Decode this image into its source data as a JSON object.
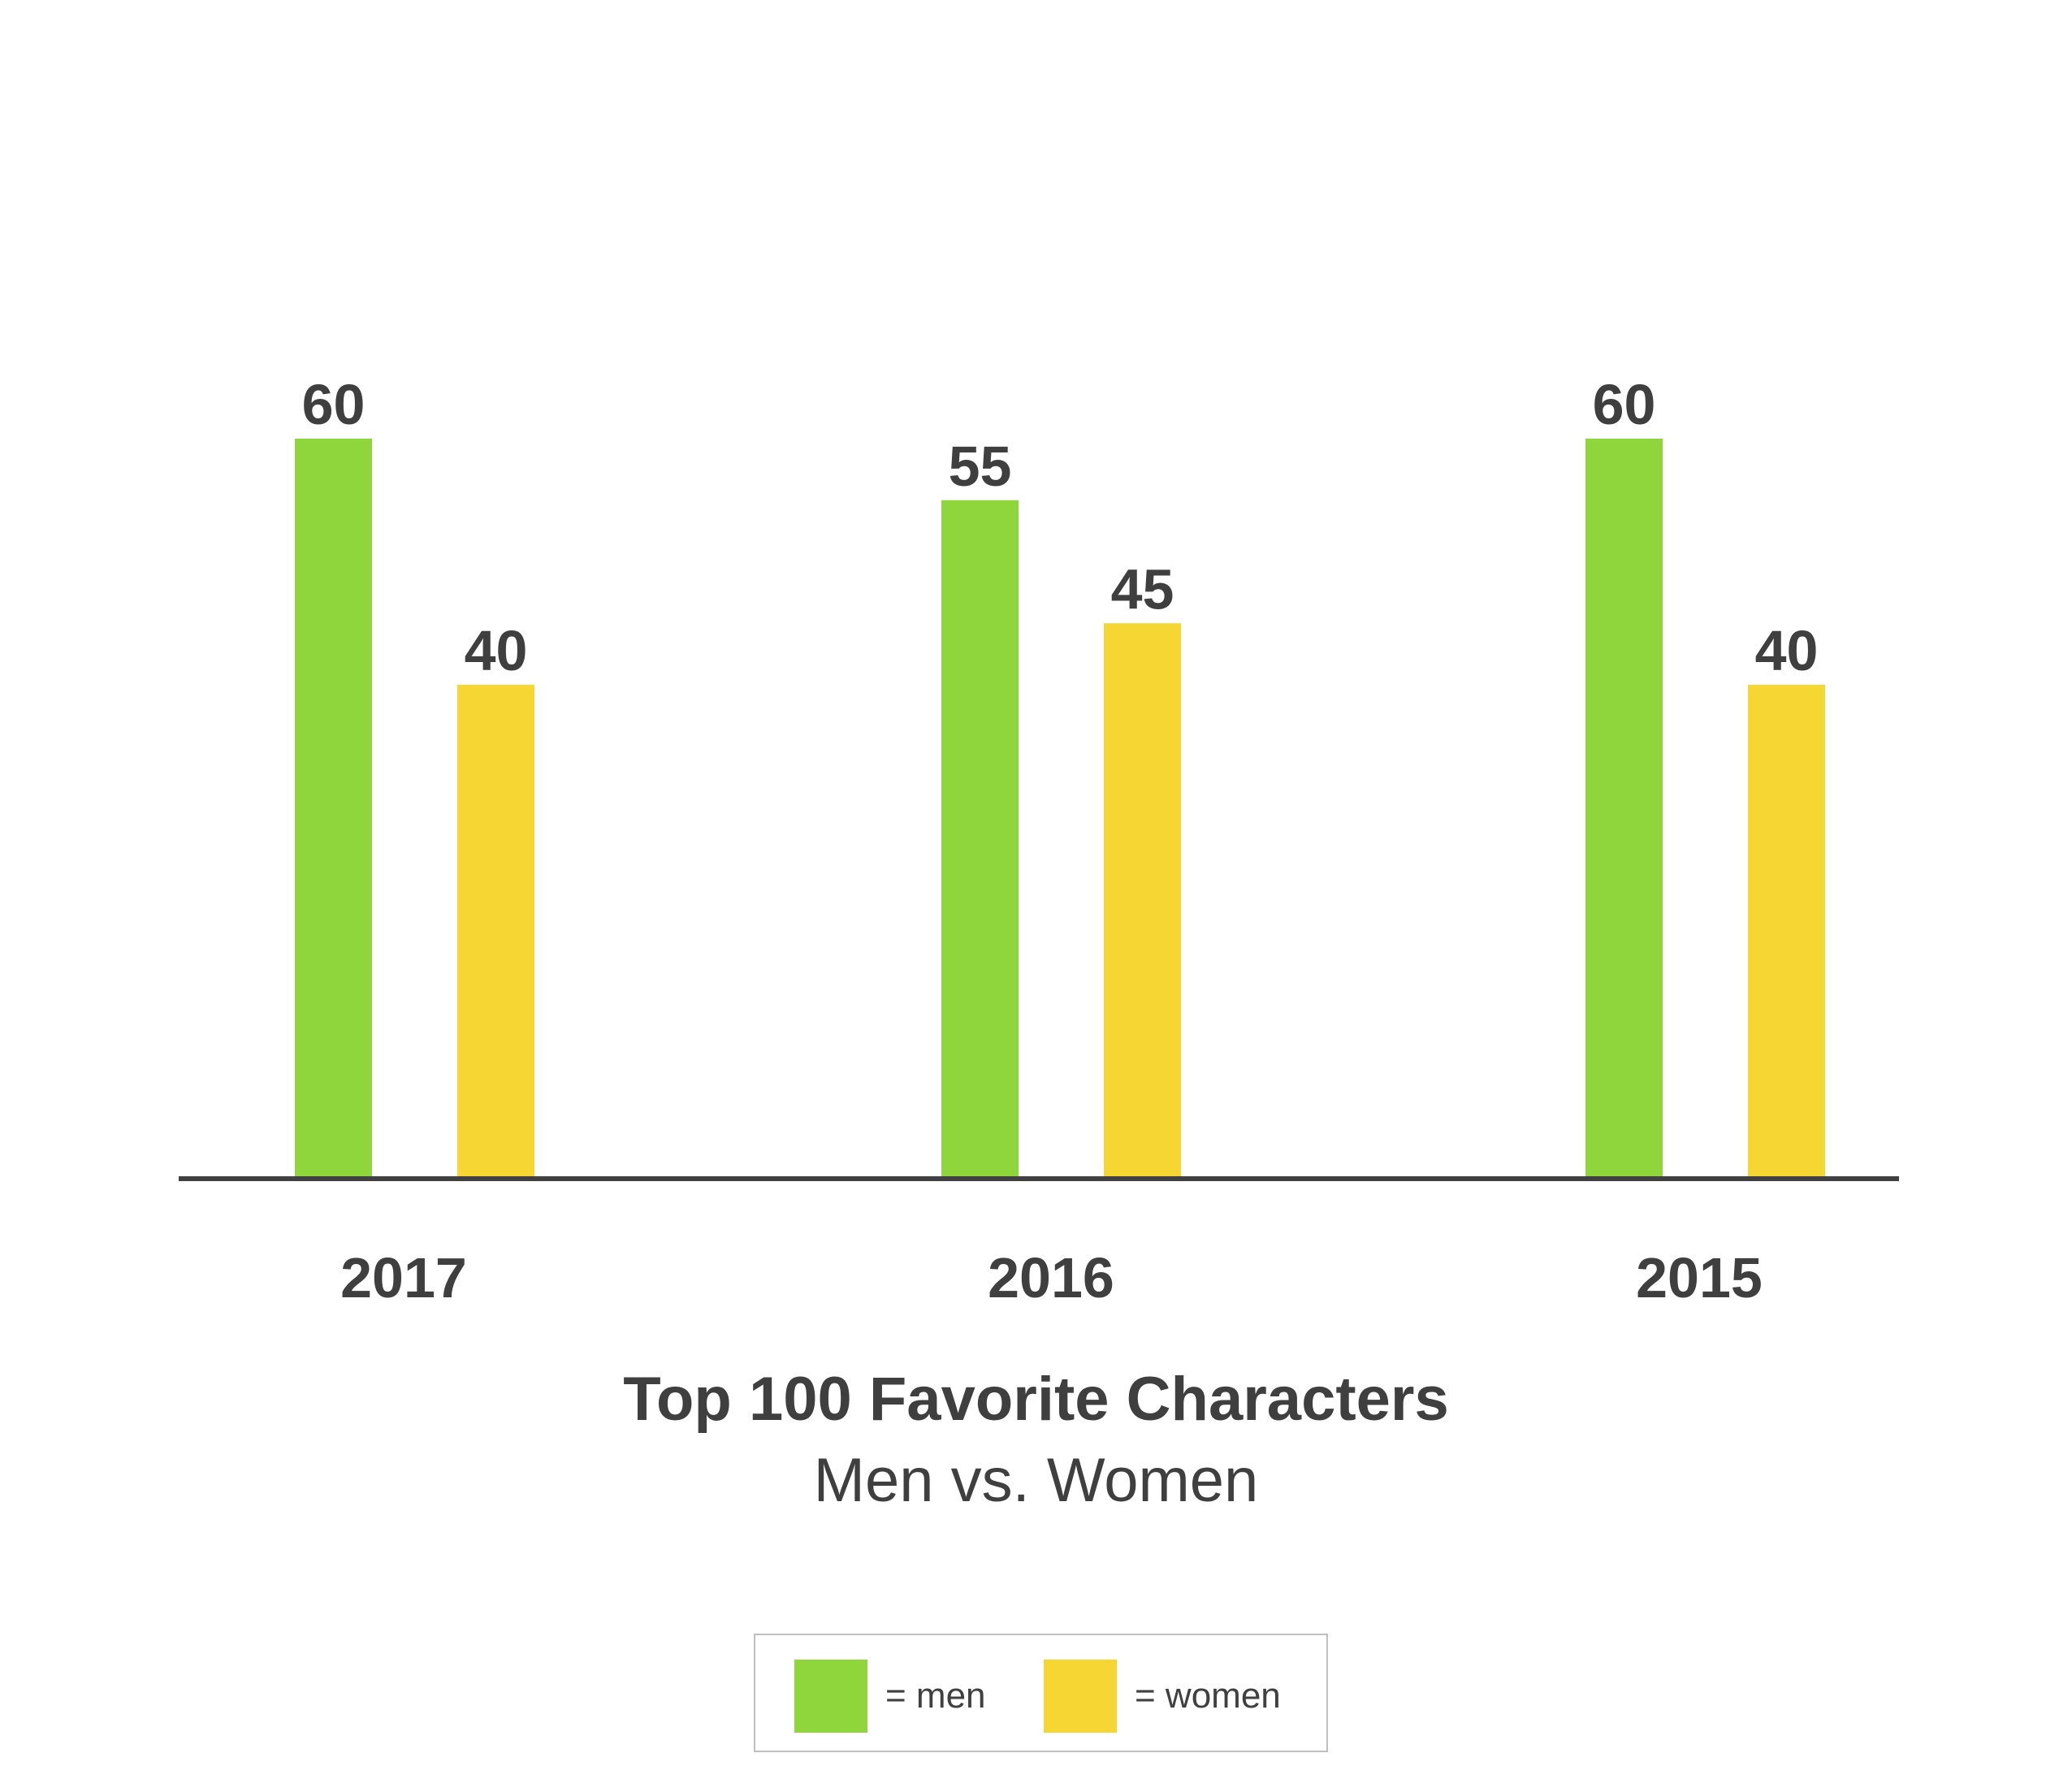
{
  "chart_data": {
    "type": "bar",
    "title": "Top 100 Favorite Characters",
    "subtitle": "Men vs. Women",
    "categories": [
      "2017",
      "2016",
      "2015"
    ],
    "series": [
      {
        "name": "men",
        "color": "#8ed63b",
        "values": [
          60,
          55,
          60
        ]
      },
      {
        "name": "women",
        "color": "#f6d632",
        "values": [
          40,
          45,
          40
        ]
      }
    ],
    "ylim": [
      0,
      100
    ],
    "grid": false,
    "legend": {
      "placement": "bottom-center",
      "items": [
        {
          "label": "= men",
          "color": "#8ed63b"
        },
        {
          "label": "= women",
          "color": "#f6d632"
        }
      ]
    },
    "axis_color": "#404040"
  }
}
